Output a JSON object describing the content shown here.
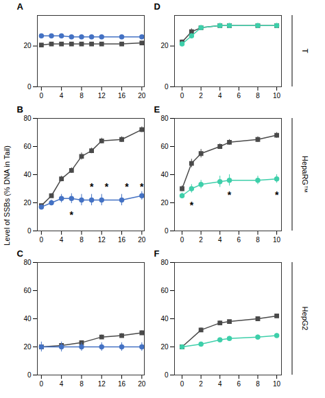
{
  "chart_data": [
    {
      "type": "line",
      "title": "A",
      "x": [
        0,
        2,
        4,
        6,
        8,
        10,
        12,
        16,
        20
      ],
      "series": [
        {
          "color": "#4a4a4a",
          "marker": "square",
          "values": [
            20.5,
            21,
            21,
            21,
            21,
            21,
            21,
            21,
            21.5
          ],
          "errors": [
            0.5,
            0.5,
            0.5,
            0.5,
            0.5,
            0.5,
            0.5,
            0.5,
            0.5
          ]
        },
        {
          "color": "#4472c4",
          "marker": "circle",
          "values": [
            25,
            25,
            25,
            24.5,
            24.5,
            24.5,
            24.5,
            24.5,
            24.5
          ],
          "errors": [
            0.5,
            0.5,
            0.5,
            0.5,
            0.5,
            0.5,
            0.5,
            0.5,
            0.5
          ]
        }
      ],
      "xlim": [
        -0.8,
        20.5
      ],
      "xticks": [
        0,
        4,
        8,
        12,
        16,
        20
      ],
      "ylim": [
        0,
        35
      ],
      "yticks": [
        0,
        20
      ],
      "annotations": []
    },
    {
      "type": "line",
      "title": "D",
      "x": [
        0,
        1,
        2,
        4,
        5,
        8,
        10
      ],
      "series": [
        {
          "color": "#4a4a4a",
          "marker": "square",
          "values": [
            22,
            27,
            29,
            30,
            30,
            30,
            30
          ],
          "errors": [
            1,
            1.5,
            1,
            1,
            1,
            1,
            1
          ]
        },
        {
          "color": "#3ecfaa",
          "marker": "circle",
          "values": [
            21,
            25,
            29,
            30,
            30,
            30,
            30
          ],
          "errors": [
            1,
            1,
            1,
            1,
            1,
            1,
            1
          ]
        }
      ],
      "xlim": [
        -0.8,
        10.5
      ],
      "xticks": [
        0,
        2,
        4,
        6,
        8,
        10
      ],
      "ylim": [
        0,
        35
      ],
      "yticks": [
        0,
        20
      ],
      "annotations": []
    },
    {
      "type": "line",
      "title": "B",
      "x": [
        0,
        2,
        4,
        6,
        8,
        10,
        12,
        16,
        20
      ],
      "series": [
        {
          "color": "#4a4a4a",
          "marker": "square",
          "values": [
            18,
            25,
            37,
            43,
            53,
            57,
            64,
            65,
            72
          ],
          "errors": [
            1,
            1.5,
            2,
            2,
            2.5,
            2,
            2,
            2,
            2
          ]
        },
        {
          "color": "#4472c4",
          "marker": "circle",
          "values": [
            17,
            20,
            23,
            23,
            22,
            22,
            22,
            22,
            25
          ],
          "errors": [
            1,
            2,
            3,
            3.5,
            4,
            4,
            4,
            4,
            3
          ]
        }
      ],
      "xlim": [
        -0.8,
        20.5
      ],
      "xticks": [
        0,
        4,
        8,
        12,
        16,
        20
      ],
      "ylim": [
        0,
        80
      ],
      "yticks": [
        0,
        20,
        40,
        60,
        80
      ],
      "annotations": [
        {
          "x": 6,
          "y": 9,
          "text": "*"
        },
        {
          "x": 10,
          "y": 29,
          "text": "*"
        },
        {
          "x": 13,
          "y": 29,
          "text": "*"
        },
        {
          "x": 17,
          "y": 29,
          "text": "*"
        },
        {
          "x": 20,
          "y": 29,
          "text": "*"
        }
      ]
    },
    {
      "type": "line",
      "title": "E",
      "x": [
        0,
        1,
        2,
        4,
        5,
        8,
        10
      ],
      "series": [
        {
          "color": "#4a4a4a",
          "marker": "square",
          "values": [
            30,
            48,
            55,
            60,
            63,
            65,
            68
          ],
          "errors": [
            2,
            3,
            3,
            2,
            2,
            2,
            2
          ]
        },
        {
          "color": "#3ecfaa",
          "marker": "circle",
          "values": [
            25,
            30,
            33,
            35,
            36,
            36,
            37
          ],
          "errors": [
            2,
            3,
            3,
            4,
            4,
            3,
            3
          ]
        }
      ],
      "xlim": [
        -0.8,
        10.5
      ],
      "xticks": [
        0,
        2,
        4,
        6,
        8,
        10
      ],
      "ylim": [
        0,
        80
      ],
      "yticks": [
        0,
        20,
        40,
        60,
        80
      ],
      "annotations": [
        {
          "x": 1,
          "y": 16,
          "text": "*"
        },
        {
          "x": 5,
          "y": 23,
          "text": "*"
        },
        {
          "x": 10,
          "y": 23,
          "text": "*"
        }
      ]
    },
    {
      "type": "line",
      "title": "C",
      "x": [
        0,
        4,
        8,
        12,
        16,
        20
      ],
      "series": [
        {
          "color": "#4a4a4a",
          "marker": "square",
          "values": [
            20,
            21,
            23,
            27,
            28,
            30
          ],
          "errors": [
            1,
            1,
            1,
            1.5,
            1.5,
            1.5
          ]
        },
        {
          "color": "#4472c4",
          "marker": "circle",
          "values": [
            20,
            20,
            20,
            20,
            20,
            20
          ],
          "errors": [
            3.5,
            3.5,
            3,
            3,
            3,
            3
          ]
        }
      ],
      "xlim": [
        -0.8,
        20.5
      ],
      "xticks": [
        0,
        4,
        8,
        12,
        16,
        20
      ],
      "ylim": [
        0,
        80
      ],
      "yticks": [
        0,
        20,
        40,
        60,
        80
      ],
      "annotations": []
    },
    {
      "type": "line",
      "title": "F",
      "x": [
        0,
        2,
        4,
        5,
        8,
        10
      ],
      "series": [
        {
          "color": "#4a4a4a",
          "marker": "square",
          "values": [
            20,
            32,
            37,
            38,
            40,
            42
          ],
          "errors": [
            1,
            1.5,
            1.5,
            1,
            1,
            1
          ]
        },
        {
          "color": "#3ecfaa",
          "marker": "circle",
          "values": [
            20,
            22,
            25,
            26,
            27,
            28
          ],
          "errors": [
            1,
            1.5,
            1.5,
            1.5,
            1.5,
            1.5
          ]
        }
      ],
      "xlim": [
        -0.8,
        10.5
      ],
      "xticks": [
        0,
        2,
        4,
        6,
        8,
        10
      ],
      "ylim": [
        0,
        80
      ],
      "yticks": [
        0,
        20,
        40,
        60,
        80
      ],
      "annotations": []
    }
  ],
  "ylabel": "Level of SSBs (% DNA in Tail)",
  "row_labels": [
    "T",
    "HepaRG™",
    "HepG2"
  ]
}
